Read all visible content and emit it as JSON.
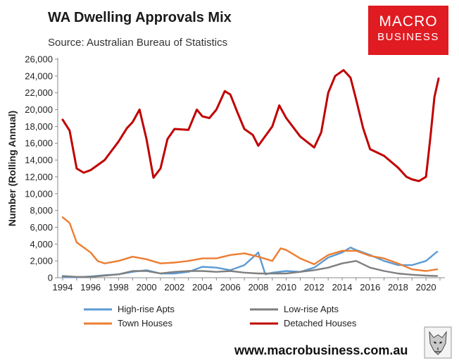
{
  "header": {
    "title": "WA Dwelling Approvals Mix",
    "subtitle": "Source: Australian Bureau of Statistics"
  },
  "logo": {
    "line1": "MACRO",
    "line2": "BUSINESS",
    "color": "#e01b22"
  },
  "footer": {
    "url": "www.macrobusiness.com.au"
  },
  "chart_data": {
    "type": "line",
    "title": "WA Dwelling Approvals Mix",
    "ylabel": "Number (Rolling Annual)",
    "xlabel": "",
    "xlim": [
      1994,
      2021
    ],
    "ylim": [
      0,
      26000
    ],
    "x_ticks": [
      1994,
      1996,
      1998,
      2000,
      2002,
      2004,
      2006,
      2008,
      2010,
      2012,
      2014,
      2016,
      2018,
      2020
    ],
    "x_tick_labels": [
      "1994",
      "1996",
      "1998",
      "2000",
      "2002",
      "2004",
      "2006",
      "2008",
      "2010",
      "2012",
      "2014",
      "2016",
      "2018",
      "2020"
    ],
    "y_ticks": [
      0,
      2000,
      4000,
      6000,
      8000,
      10000,
      12000,
      14000,
      16000,
      18000,
      20000,
      22000,
      24000,
      26000
    ],
    "y_tick_labels": [
      "0",
      "2,000",
      "4,000",
      "6,000",
      "8,000",
      "10,000",
      "12,000",
      "14,000",
      "16,000",
      "18,000",
      "20,000",
      "22,000",
      "24,000",
      "26,000"
    ],
    "grid": false,
    "legend_position": "bottom",
    "series": [
      {
        "name": "High-rise Apts",
        "color": "#5b9bd5",
        "points": [
          [
            1994,
            100
          ],
          [
            1995,
            50
          ],
          [
            1996,
            150
          ],
          [
            1997,
            300
          ],
          [
            1998,
            400
          ],
          [
            1999,
            700
          ],
          [
            2000,
            900
          ],
          [
            2001,
            500
          ],
          [
            2002,
            500
          ],
          [
            2003,
            700
          ],
          [
            2004,
            1300
          ],
          [
            2005,
            1200
          ],
          [
            2006,
            900
          ],
          [
            2007,
            1500
          ],
          [
            2008,
            3000
          ],
          [
            2008.5,
            400
          ],
          [
            2009,
            600
          ],
          [
            2010,
            800
          ],
          [
            2011,
            700
          ],
          [
            2012,
            1200
          ],
          [
            2013,
            2400
          ],
          [
            2014,
            3000
          ],
          [
            2014.6,
            3600
          ],
          [
            2015,
            3300
          ],
          [
            2016,
            2700
          ],
          [
            2017,
            2000
          ],
          [
            2018,
            1500
          ],
          [
            2019,
            1500
          ],
          [
            2020,
            2000
          ],
          [
            2020.8,
            3100
          ]
        ]
      },
      {
        "name": "Low-rise Apts",
        "color": "#7f7f7f",
        "points": [
          [
            1994,
            200
          ],
          [
            1995,
            100
          ],
          [
            1996,
            100
          ],
          [
            1997,
            250
          ],
          [
            1998,
            400
          ],
          [
            1999,
            800
          ],
          [
            2000,
            800
          ],
          [
            2001,
            500
          ],
          [
            2002,
            700
          ],
          [
            2003,
            800
          ],
          [
            2004,
            800
          ],
          [
            2005,
            700
          ],
          [
            2006,
            800
          ],
          [
            2007,
            600
          ],
          [
            2008,
            500
          ],
          [
            2009,
            500
          ],
          [
            2010,
            500
          ],
          [
            2011,
            700
          ],
          [
            2012,
            900
          ],
          [
            2013,
            1200
          ],
          [
            2014,
            1700
          ],
          [
            2015,
            2000
          ],
          [
            2016,
            1200
          ],
          [
            2017,
            800
          ],
          [
            2018,
            500
          ],
          [
            2019,
            350
          ],
          [
            2020,
            250
          ],
          [
            2020.8,
            200
          ]
        ]
      },
      {
        "name": "Town Houses",
        "color": "#ed7d31",
        "points": [
          [
            1994,
            7200
          ],
          [
            1994.5,
            6500
          ],
          [
            1995,
            4200
          ],
          [
            1996,
            3000
          ],
          [
            1996.5,
            2000
          ],
          [
            1997,
            1700
          ],
          [
            1998,
            2000
          ],
          [
            1999,
            2500
          ],
          [
            2000,
            2200
          ],
          [
            2001,
            1700
          ],
          [
            2002,
            1800
          ],
          [
            2003,
            2000
          ],
          [
            2004,
            2300
          ],
          [
            2005,
            2300
          ],
          [
            2006,
            2700
          ],
          [
            2007,
            2900
          ],
          [
            2008,
            2500
          ],
          [
            2009,
            2000
          ],
          [
            2009.6,
            3500
          ],
          [
            2010,
            3300
          ],
          [
            2011,
            2300
          ],
          [
            2012,
            1600
          ],
          [
            2013,
            2700
          ],
          [
            2014,
            3200
          ],
          [
            2015,
            3200
          ],
          [
            2016,
            2600
          ],
          [
            2017,
            2300
          ],
          [
            2018,
            1700
          ],
          [
            2019,
            1000
          ],
          [
            2020,
            800
          ],
          [
            2020.8,
            1000
          ]
        ]
      },
      {
        "name": "Detached Houses",
        "color": "#c00000",
        "points": [
          [
            1994,
            18800
          ],
          [
            1994.5,
            17500
          ],
          [
            1995,
            13000
          ],
          [
            1995.5,
            12500
          ],
          [
            1996,
            12800
          ],
          [
            1997,
            14000
          ],
          [
            1998,
            16200
          ],
          [
            1998.6,
            17800
          ],
          [
            1999,
            18500
          ],
          [
            1999.5,
            20000
          ],
          [
            2000,
            16500
          ],
          [
            2000.5,
            11900
          ],
          [
            2001,
            13000
          ],
          [
            2001.5,
            16500
          ],
          [
            2002,
            17700
          ],
          [
            2003,
            17600
          ],
          [
            2003.6,
            20000
          ],
          [
            2004,
            19200
          ],
          [
            2004.5,
            19000
          ],
          [
            2005,
            20000
          ],
          [
            2005.6,
            22200
          ],
          [
            2006,
            21800
          ],
          [
            2006.5,
            19700
          ],
          [
            2007,
            17700
          ],
          [
            2007.6,
            17000
          ],
          [
            2008,
            15700
          ],
          [
            2009,
            18000
          ],
          [
            2009.5,
            20500
          ],
          [
            2010,
            19000
          ],
          [
            2011,
            16800
          ],
          [
            2012,
            15500
          ],
          [
            2012.5,
            17300
          ],
          [
            2013,
            22000
          ],
          [
            2013.5,
            24000
          ],
          [
            2014.1,
            24700
          ],
          [
            2014.6,
            23800
          ],
          [
            2015,
            21200
          ],
          [
            2015.5,
            17800
          ],
          [
            2016,
            15300
          ],
          [
            2017,
            14500
          ],
          [
            2018,
            13100
          ],
          [
            2018.6,
            12000
          ],
          [
            2019,
            11700
          ],
          [
            2019.5,
            11500
          ],
          [
            2020,
            12000
          ],
          [
            2020.3,
            16500
          ],
          [
            2020.6,
            21500
          ],
          [
            2020.9,
            23700
          ]
        ]
      }
    ]
  }
}
